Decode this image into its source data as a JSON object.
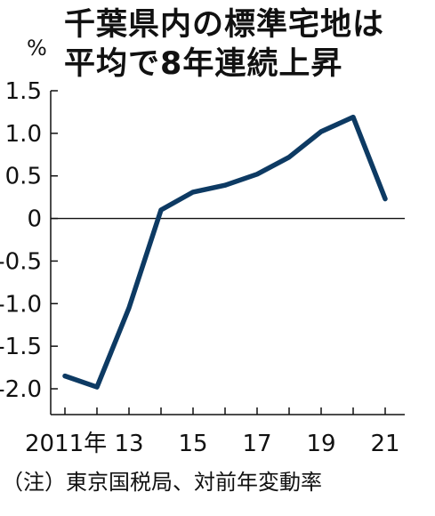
{
  "title_lines": [
    "千葉県内の標準宅地は",
    "平均で8年連続上昇"
  ],
  "unit": "%",
  "note": "（注）東京国税局、対前年変動率",
  "chart_data": {
    "type": "line",
    "title": "千葉県内の標準宅地は平均で8年連続上昇",
    "ylabel": "%",
    "x": [
      2011,
      2012,
      2013,
      2014,
      2015,
      2016,
      2017,
      2018,
      2019,
      2020,
      2021
    ],
    "series": [
      {
        "values": [
          -1.85,
          -1.98,
          -1.05,
          0.1,
          0.31,
          0.39,
          0.52,
          0.72,
          1.02,
          1.19,
          0.23
        ]
      }
    ],
    "ylim": [
      -2.0,
      1.5
    ],
    "yticks": [
      "1.5",
      "1.0",
      "0.5",
      "0",
      "-0.5",
      "-1.0",
      "-1.5",
      "-2.0"
    ],
    "ytick_values": [
      1.5,
      1.0,
      0.5,
      0,
      -0.5,
      -1.0,
      -1.5,
      -2.0
    ],
    "xtick_labels": [
      "2011年",
      "13",
      "15",
      "17",
      "19",
      "21"
    ],
    "xtick_values": [
      2011,
      2013,
      2015,
      2017,
      2019,
      2021
    ],
    "line_color": "#0d3a63"
  }
}
